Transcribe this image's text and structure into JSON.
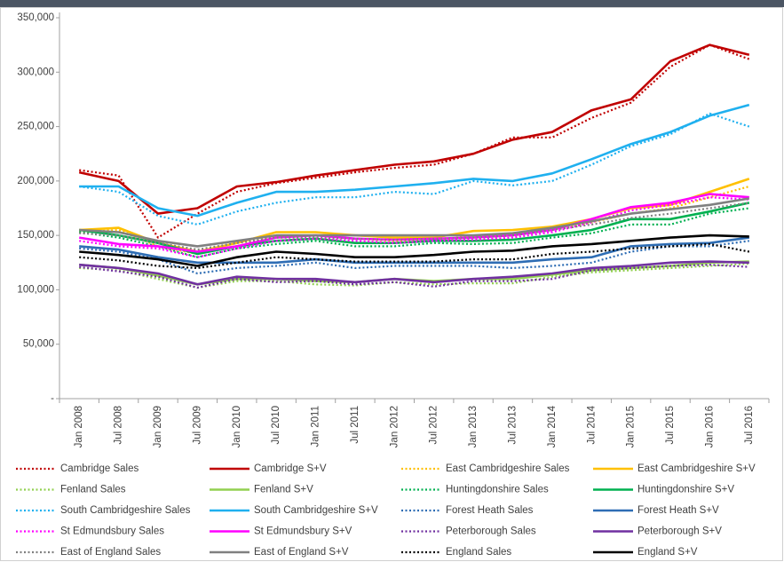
{
  "chart_data": {
    "type": "line",
    "categories": [
      "Jan 2008",
      "Jul 2008",
      "Jan 2009",
      "Jul 2009",
      "Jan 2010",
      "Jul 2010",
      "Jan 2011",
      "Jul 2011",
      "Jan 2012",
      "Jul 2012",
      "Jan 2013",
      "Jul 2013",
      "Jan 2014",
      "Jul 2014",
      "Jan 2015",
      "Jul 2015",
      "Jan 2016",
      "Jul 2016"
    ],
    "ylim": [
      0,
      350000
    ],
    "yticks": [
      {
        "value": 0,
        "label": "-"
      },
      {
        "value": 50000,
        "label": "50,000"
      },
      {
        "value": 100000,
        "label": "100,000"
      },
      {
        "value": 150000,
        "label": "150,000"
      },
      {
        "value": 200000,
        "label": "200,000"
      },
      {
        "value": 250000,
        "label": "250,000"
      },
      {
        "value": 300000,
        "label": "300,000"
      },
      {
        "value": 350000,
        "label": "350,000"
      }
    ],
    "legend": "bottom",
    "series": [
      {
        "name": "Cambridge Sales",
        "color": "#c00000",
        "line_style": "dotted",
        "values": [
          210000,
          205000,
          148000,
          170000,
          190000,
          198000,
          203000,
          208000,
          212000,
          215000,
          225000,
          240000,
          240000,
          258000,
          272000,
          305000,
          325000,
          312000
        ]
      },
      {
        "name": "Cambridge S+V",
        "color": "#c00000",
        "line_style": "solid",
        "values": [
          208000,
          200000,
          170000,
          175000,
          195000,
          199000,
          205000,
          210000,
          215000,
          218000,
          225000,
          238000,
          245000,
          265000,
          275000,
          310000,
          325000,
          316000
        ]
      },
      {
        "name": "East Cambridgeshire Sales",
        "color": "#ffc000",
        "line_style": "dotted",
        "values": [
          153000,
          155000,
          140000,
          133000,
          140000,
          150000,
          150000,
          147000,
          145000,
          145000,
          150000,
          150000,
          155000,
          162000,
          170000,
          175000,
          185000,
          195000
        ]
      },
      {
        "name": "East Cambridgeshire S+V",
        "color": "#ffc000",
        "line_style": "solid",
        "values": [
          155000,
          157000,
          143000,
          135000,
          143000,
          153000,
          153000,
          150000,
          148000,
          148000,
          154000,
          155000,
          158000,
          165000,
          175000,
          178000,
          190000,
          202000
        ]
      },
      {
        "name": "Fenland Sales",
        "color": "#92d050",
        "line_style": "dotted",
        "values": [
          120000,
          118000,
          110000,
          102000,
          108000,
          108000,
          105000,
          104000,
          107000,
          105000,
          106000,
          106000,
          112000,
          116000,
          118000,
          120000,
          122000,
          124000
        ]
      },
      {
        "name": "Fenland S+V",
        "color": "#92d050",
        "line_style": "solid",
        "values": [
          123000,
          120000,
          113000,
          105000,
          110000,
          110000,
          108000,
          107000,
          110000,
          108000,
          110000,
          110000,
          114000,
          118000,
          120000,
          122000,
          125000,
          126000
        ]
      },
      {
        "name": "Huntingdonshire Sales",
        "color": "#00b050",
        "line_style": "dotted",
        "values": [
          153000,
          148000,
          140000,
          130000,
          138000,
          142000,
          145000,
          140000,
          140000,
          143000,
          142000,
          143000,
          148000,
          152000,
          160000,
          160000,
          170000,
          175000
        ]
      },
      {
        "name": "Huntingdonshire S+V",
        "color": "#00b050",
        "line_style": "solid",
        "values": [
          155000,
          150000,
          143000,
          133000,
          140000,
          145000,
          147000,
          143000,
          143000,
          145000,
          145000,
          146000,
          150000,
          155000,
          165000,
          165000,
          172000,
          180000
        ]
      },
      {
        "name": "South Cambridgeshire Sales",
        "color": "#1fb0ef",
        "line_style": "dotted",
        "values": [
          195000,
          190000,
          168000,
          160000,
          172000,
          180000,
          185000,
          185000,
          190000,
          188000,
          200000,
          196000,
          200000,
          215000,
          232000,
          243000,
          262000,
          250000
        ]
      },
      {
        "name": "South Cambridgeshire S+V",
        "color": "#1fb0ef",
        "line_style": "solid",
        "values": [
          195000,
          195000,
          175000,
          168000,
          180000,
          190000,
          190000,
          192000,
          195000,
          198000,
          202000,
          200000,
          207000,
          220000,
          234000,
          245000,
          260000,
          270000
        ]
      },
      {
        "name": "Forest Heath Sales",
        "color": "#2e6db4",
        "line_style": "dotted",
        "values": [
          138000,
          135000,
          128000,
          115000,
          120000,
          122000,
          125000,
          120000,
          122000,
          122000,
          122000,
          120000,
          122000,
          125000,
          135000,
          140000,
          140000,
          145000
        ]
      },
      {
        "name": "Forest Heath S+V",
        "color": "#2e6db4",
        "line_style": "solid",
        "values": [
          140000,
          137000,
          130000,
          125000,
          125000,
          125000,
          128000,
          125000,
          125000,
          125000,
          125000,
          125000,
          128000,
          130000,
          140000,
          142000,
          143000,
          148000
        ]
      },
      {
        "name": "St Edmundsbury Sales",
        "color": "#ff00ff",
        "line_style": "dotted",
        "values": [
          145000,
          140000,
          138000,
          130000,
          138000,
          145000,
          147000,
          145000,
          143000,
          145000,
          146000,
          148000,
          153000,
          162000,
          173000,
          178000,
          185000,
          183000
        ]
      },
      {
        "name": "St Edmundsbury S+V",
        "color": "#ff00ff",
        "line_style": "solid",
        "values": [
          148000,
          142000,
          140000,
          135000,
          140000,
          148000,
          150000,
          147000,
          146000,
          147000,
          148000,
          150000,
          155000,
          165000,
          176000,
          180000,
          188000,
          185000
        ]
      },
      {
        "name": "Peterborough Sales",
        "color": "#7030a0",
        "line_style": "dotted",
        "values": [
          121000,
          117000,
          112000,
          102000,
          110000,
          107000,
          108000,
          105000,
          107000,
          103000,
          108000,
          108000,
          110000,
          118000,
          120000,
          122000,
          123000,
          121000
        ]
      },
      {
        "name": "Peterborough S+V",
        "color": "#7030a0",
        "line_style": "solid",
        "values": [
          123000,
          120000,
          115000,
          105000,
          112000,
          110000,
          110000,
          107000,
          110000,
          107000,
          110000,
          112000,
          115000,
          120000,
          122000,
          125000,
          126000,
          125000
        ]
      },
      {
        "name": "East of England Sales",
        "color": "#808080",
        "line_style": "dotted",
        "values": [
          152000,
          150000,
          143000,
          137000,
          143000,
          148000,
          148000,
          147000,
          146000,
          147000,
          148000,
          150000,
          155000,
          160000,
          166000,
          170000,
          175000,
          180000
        ]
      },
      {
        "name": "East of England S+V",
        "color": "#808080",
        "line_style": "solid",
        "values": [
          155000,
          153000,
          145000,
          140000,
          145000,
          150000,
          150000,
          150000,
          150000,
          150000,
          150000,
          152000,
          157000,
          163000,
          170000,
          174000,
          178000,
          184000
        ]
      },
      {
        "name": "England Sales",
        "color": "#000000",
        "line_style": "dotted",
        "values": [
          130000,
          127000,
          122000,
          120000,
          125000,
          130000,
          128000,
          126000,
          126000,
          126000,
          128000,
          128000,
          133000,
          135000,
          138000,
          140000,
          142000,
          135000
        ]
      },
      {
        "name": "England S+V",
        "color": "#000000",
        "line_style": "solid",
        "values": [
          135000,
          132000,
          128000,
          122000,
          130000,
          135000,
          133000,
          130000,
          130000,
          132000,
          135000,
          136000,
          140000,
          142000,
          145000,
          148000,
          150000,
          149000
        ]
      }
    ]
  }
}
